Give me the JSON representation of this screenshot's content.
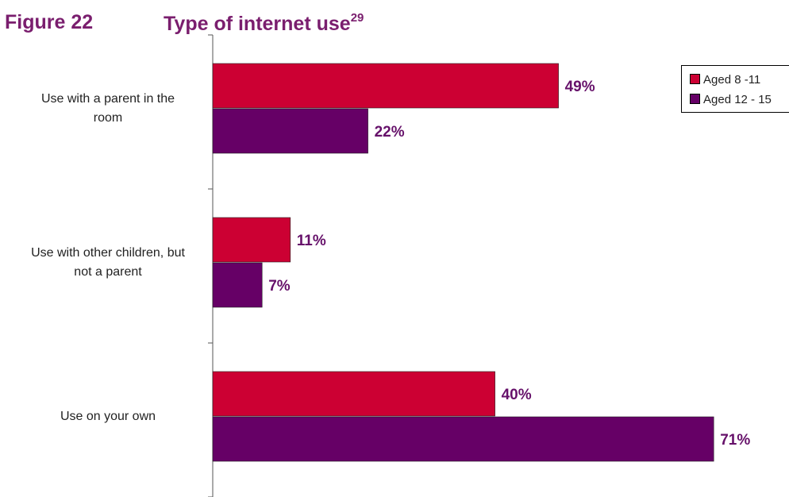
{
  "figure": {
    "number": "Figure 22",
    "title": "Type of internet use",
    "footnote": "29"
  },
  "chart_data": {
    "type": "bar",
    "orientation": "horizontal",
    "categories": [
      "Use with a parent in the room",
      "Use with other children, but not a parent",
      "Use on your own"
    ],
    "category_lines": [
      [
        "Use with a parent in the",
        "room"
      ],
      [
        "Use with other children, but",
        "not a parent"
      ],
      [
        "Use on your own"
      ]
    ],
    "series": [
      {
        "name": "Aged 8 -11",
        "values": [
          49,
          11,
          40
        ],
        "labels": [
          "49%",
          "11%",
          "40%"
        ],
        "color": "#cc0033"
      },
      {
        "name": "Aged 12 - 15",
        "values": [
          22,
          7,
          71
        ],
        "labels": [
          "22%",
          "7%",
          "71%"
        ],
        "color": "#660066"
      }
    ],
    "value_unit": "%",
    "xlim": [
      0,
      80
    ],
    "grid": false,
    "legend_position": "top-right",
    "data_label_color": "#66116a"
  }
}
